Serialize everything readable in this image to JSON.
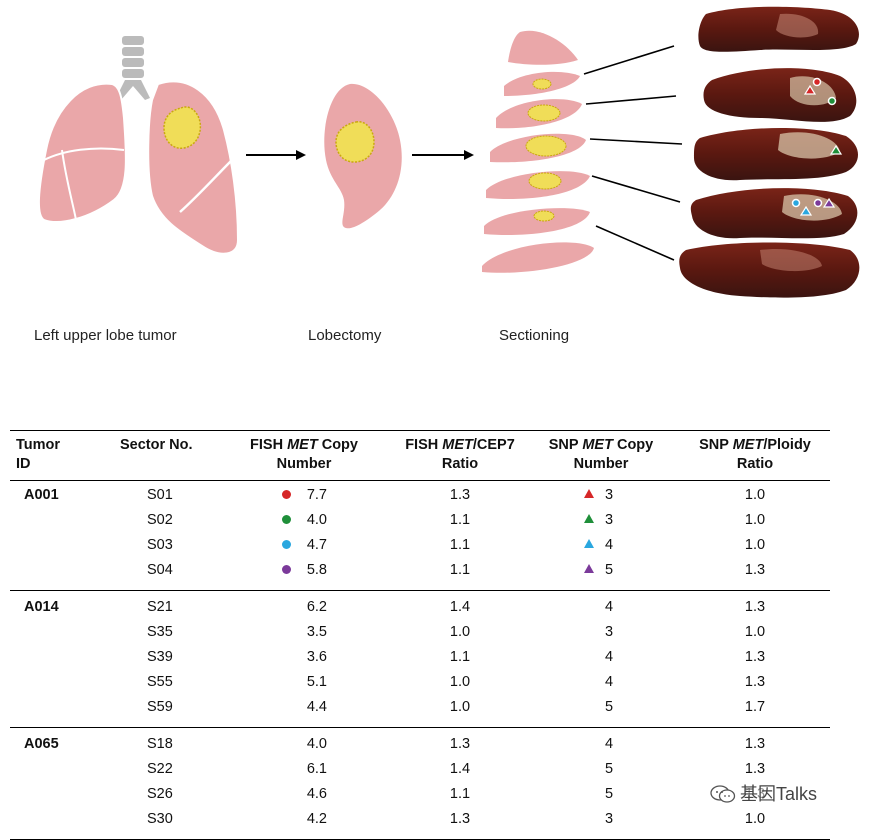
{
  "captions": {
    "left_upper_lobe": "Left upper lobe tumor",
    "lobectomy": "Lobectomy",
    "sectioning": "Sectioning"
  },
  "marker_colors": {
    "red": "#d62728",
    "green": "#1f8f3a",
    "blue": "#2aa7df",
    "purple": "#7b3a9a"
  },
  "table": {
    "headers": [
      {
        "pre": "Tumor",
        "ital": "",
        "post": "",
        "line2": "ID"
      },
      {
        "pre": "Sector No.",
        "ital": "",
        "post": "",
        "line2": ""
      },
      {
        "pre": "FISH ",
        "ital": "MET",
        "post": " Copy",
        "line2": "Number"
      },
      {
        "pre": "FISH ",
        "ital": "MET",
        "post": "/CEP7",
        "line2": "Ratio"
      },
      {
        "pre": "SNP ",
        "ital": "MET",
        "post": " Copy",
        "line2": "Number"
      },
      {
        "pre": "SNP ",
        "ital": "MET",
        "post": "/Ploidy",
        "line2": "Ratio"
      }
    ],
    "groups": [
      {
        "tumor_id": "A001",
        "rows": [
          {
            "sector": "S01",
            "fish_copy": "7.7",
            "fish_ratio": "1.3",
            "snp_copy": "3",
            "snp_ratio": "1.0",
            "marker": "red"
          },
          {
            "sector": "S02",
            "fish_copy": "4.0",
            "fish_ratio": "1.1",
            "snp_copy": "3",
            "snp_ratio": "1.0",
            "marker": "green"
          },
          {
            "sector": "S03",
            "fish_copy": "4.7",
            "fish_ratio": "1.1",
            "snp_copy": "4",
            "snp_ratio": "1.0",
            "marker": "blue"
          },
          {
            "sector": "S04",
            "fish_copy": "5.8",
            "fish_ratio": "1.1",
            "snp_copy": "5",
            "snp_ratio": "1.3",
            "marker": "purple"
          }
        ]
      },
      {
        "tumor_id": "A014",
        "rows": [
          {
            "sector": "S21",
            "fish_copy": "6.2",
            "fish_ratio": "1.4",
            "snp_copy": "4",
            "snp_ratio": "1.3",
            "marker": ""
          },
          {
            "sector": "S35",
            "fish_copy": "3.5",
            "fish_ratio": "1.0",
            "snp_copy": "3",
            "snp_ratio": "1.0",
            "marker": ""
          },
          {
            "sector": "S39",
            "fish_copy": "3.6",
            "fish_ratio": "1.1",
            "snp_copy": "4",
            "snp_ratio": "1.3",
            "marker": ""
          },
          {
            "sector": "S55",
            "fish_copy": "5.1",
            "fish_ratio": "1.0",
            "snp_copy": "4",
            "snp_ratio": "1.3",
            "marker": ""
          },
          {
            "sector": "S59",
            "fish_copy": "4.4",
            "fish_ratio": "1.0",
            "snp_copy": "5",
            "snp_ratio": "1.7",
            "marker": ""
          }
        ]
      },
      {
        "tumor_id": "A065",
        "rows": [
          {
            "sector": "S18",
            "fish_copy": "4.0",
            "fish_ratio": "1.3",
            "snp_copy": "4",
            "snp_ratio": "1.3",
            "marker": ""
          },
          {
            "sector": "S22",
            "fish_copy": "6.1",
            "fish_ratio": "1.4",
            "snp_copy": "5",
            "snp_ratio": "1.3",
            "marker": ""
          },
          {
            "sector": "S26",
            "fish_copy": "4.6",
            "fish_ratio": "1.1",
            "snp_copy": "5",
            "snp_ratio": "1.3",
            "marker": ""
          },
          {
            "sector": "S30",
            "fish_copy": "4.2",
            "fish_ratio": "1.3",
            "snp_copy": "3",
            "snp_ratio": "1.0",
            "marker": ""
          }
        ]
      }
    ]
  },
  "watermark": "基因Talks",
  "icons": [
    "wechat-icon",
    "lungs-icon",
    "tumor-icon",
    "arrow-right-icon"
  ]
}
